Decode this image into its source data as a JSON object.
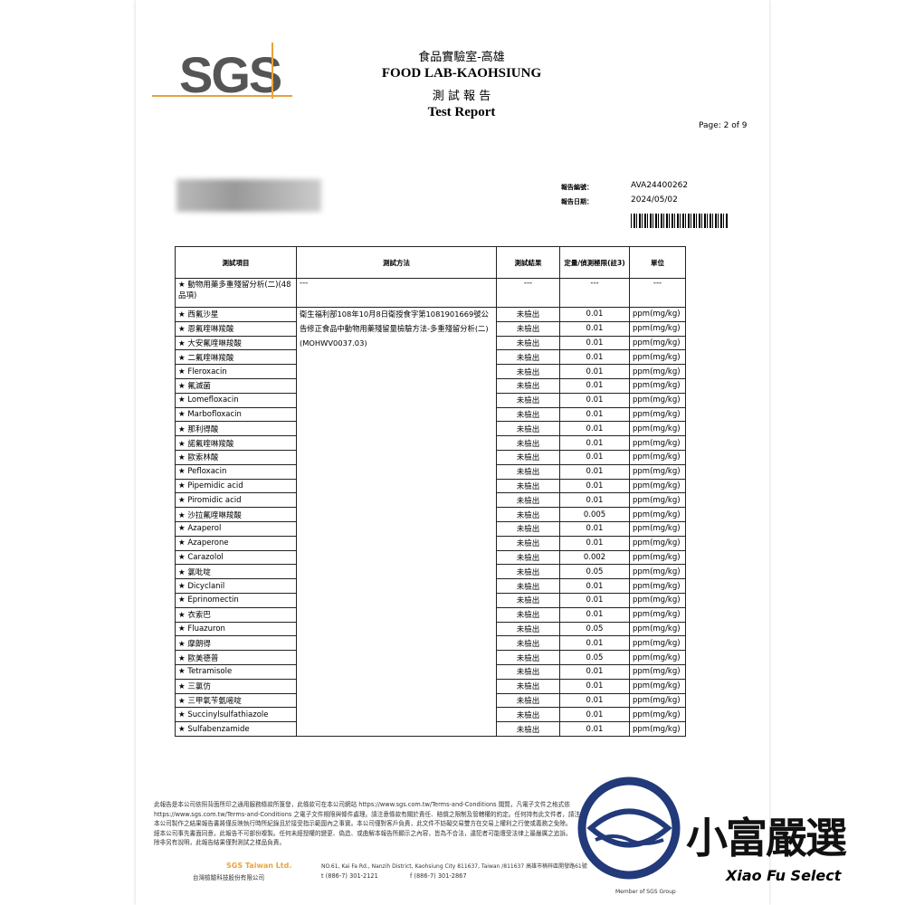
{
  "header": {
    "logo": "SGS",
    "zh_lab": "食品實驗室-高雄",
    "en_lab": "FOOD LAB-KAOHSIUNG",
    "zh_report": "測 試 報 告",
    "en_report": "Test Report",
    "page": "Page: 2 of 9"
  },
  "report_info": {
    "no_label": "報告編號：",
    "no": "AVA24400262",
    "date_label": "報告日期：",
    "date": "2024/05/02"
  },
  "table": {
    "columns": [
      "測試項目",
      "測試方法",
      "測試結果",
      "定量/偵測極限(註3)",
      "單位"
    ],
    "first_row": [
      "動物用藥多重殘留分析(二)(48品項)",
      "---",
      "---",
      "---",
      "---"
    ],
    "method": "衛生福利部108年10月8日衛授食字第1081901669號公告修正食品中動物用藥殘留量檢驗方法-多重殘留分析(二)(MOHWV0037.03)",
    "rows": [
      [
        "西氟沙星",
        "未檢出",
        "0.01",
        "ppm(mg/kg)"
      ],
      [
        "恩氟喹啉羧酸",
        "未檢出",
        "0.01",
        "ppm(mg/kg)"
      ],
      [
        "大安氟喹啉羧酸",
        "未檢出",
        "0.01",
        "ppm(mg/kg)"
      ],
      [
        "二氟喹啉羧酸",
        "未檢出",
        "0.01",
        "ppm(mg/kg)"
      ],
      [
        "Fleroxacin",
        "未檢出",
        "0.01",
        "ppm(mg/kg)"
      ],
      [
        "氟滅菌",
        "未檢出",
        "0.01",
        "ppm(mg/kg)"
      ],
      [
        "Lomefloxacin",
        "未檢出",
        "0.01",
        "ppm(mg/kg)"
      ],
      [
        "Marbofloxacin",
        "未檢出",
        "0.01",
        "ppm(mg/kg)"
      ],
      [
        "那利得酸",
        "未檢出",
        "0.01",
        "ppm(mg/kg)"
      ],
      [
        "諾氟喹啉羧酸",
        "未檢出",
        "0.01",
        "ppm(mg/kg)"
      ],
      [
        "歐索林酸",
        "未檢出",
        "0.01",
        "ppm(mg/kg)"
      ],
      [
        "Pefloxacin",
        "未檢出",
        "0.01",
        "ppm(mg/kg)"
      ],
      [
        "Pipemidic acid",
        "未檢出",
        "0.01",
        "ppm(mg/kg)"
      ],
      [
        "Piromidic acid",
        "未檢出",
        "0.01",
        "ppm(mg/kg)"
      ],
      [
        "沙拉氟喹啉羧酸",
        "未檢出",
        "0.005",
        "ppm(mg/kg)"
      ],
      [
        "Azaperol",
        "未檢出",
        "0.01",
        "ppm(mg/kg)"
      ],
      [
        "Azaperone",
        "未檢出",
        "0.01",
        "ppm(mg/kg)"
      ],
      [
        "Carazolol",
        "未檢出",
        "0.002",
        "ppm(mg/kg)"
      ],
      [
        "氯吡啶",
        "未檢出",
        "0.05",
        "ppm(mg/kg)"
      ],
      [
        "Dicyclanil",
        "未檢出",
        "0.01",
        "ppm(mg/kg)"
      ],
      [
        "Eprinomectin",
        "未檢出",
        "0.01",
        "ppm(mg/kg)"
      ],
      [
        "衣索巴",
        "未檢出",
        "0.01",
        "ppm(mg/kg)"
      ],
      [
        "Fluazuron",
        "未檢出",
        "0.05",
        "ppm(mg/kg)"
      ],
      [
        "摩朗得",
        "未檢出",
        "0.01",
        "ppm(mg/kg)"
      ],
      [
        "歐美德普",
        "未檢出",
        "0.05",
        "ppm(mg/kg)"
      ],
      [
        "Tetramisole",
        "未檢出",
        "0.01",
        "ppm(mg/kg)"
      ],
      [
        "三氯仿",
        "未檢出",
        "0.01",
        "ppm(mg/kg)"
      ],
      [
        "三甲氧苄氨嘧啶",
        "未檢出",
        "0.01",
        "ppm(mg/kg)"
      ],
      [
        "Succinylsulfathiazole",
        "未檢出",
        "0.01",
        "ppm(mg/kg)"
      ],
      [
        "Sulfabenzamide",
        "未檢出",
        "0.01",
        "ppm(mg/kg)"
      ]
    ]
  },
  "footer": {
    "lines": [
      "此報告是本公司依照背面所印之通用服務條款所簽發，此條款可在本公司網站 https://www.sgs.com.tw/Terms-and-Conditions 閱覽，凡電子文件之格式依",
      "https://www.sgs.com.tw/Terms-and-Conditions 之電子文件期限與條件處理。請注意條款有關於責任、賠償之限制及管轄權的約定。任何持有此文件者，請注意",
      "本公司製作之結果報告書將僅反映執行時所紀錄且於接受指示範圍內之事實。本公司僅對客戶負責，此文件不妨礙交易雙方在交易上權利之行使或義務之免除。",
      "經本公司事先書面同意，此報告不可部份複製。任何未經授權的變更、偽造、或曲解本報告所顯示之內容，皆為不合法，違犯者可能遭受法律上最嚴厲之追訴。",
      "除非另有說明，此報告結果僅對測試之樣品負責。"
    ],
    "company": "SGS Taiwan Ltd.",
    "company_zh": "台灣檢驗科技股份有限公司",
    "address": "NO.61, Kai Fa Rd., Nanzih District, Kaohsiung City 811637, Taiwan /811637 高雄市楠梓區開發路61號",
    "phone": "t (886-7) 301-2121",
    "fax": "f (886-7) 301-2867",
    "member": "Member of SGS Group"
  },
  "watermark": {
    "name": "小富嚴選",
    "sub": "Xiao Fu Select"
  }
}
